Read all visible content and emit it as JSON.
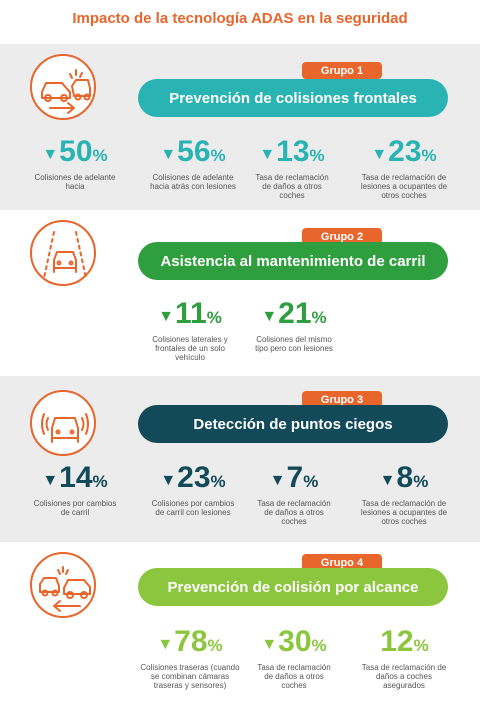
{
  "title": "Impacto de la tecnología ADAS en la seguridad",
  "groups": [
    {
      "badge": "Grupo 1",
      "heading": "Prevención de colisiones frontales",
      "color": "#2ab3b3",
      "icon": "frontal-collision-icon",
      "stats": [
        {
          "arrow": "▼",
          "value": "50",
          "unit": "%",
          "desc": "Colisiones de adelante hacia"
        },
        {
          "arrow": "▼",
          "value": "56",
          "unit": "%",
          "desc": "Colisiones de adelante hacia atrás con lesiones"
        },
        {
          "arrow": "▼",
          "value": "13",
          "unit": "%",
          "desc": "Tasa de reclamación de daños a otros coches"
        },
        {
          "arrow": "▼",
          "value": "23",
          "unit": "%",
          "desc": "Tasa de reclamación de lesiones a ocupantes de otros coches"
        }
      ]
    },
    {
      "badge": "Grupo 2",
      "heading": "Asistencia al mantenimiento de carril",
      "color": "#2f9e3f",
      "icon": "lane-keeping-icon",
      "stats": [
        {
          "arrow": "▼",
          "value": "11",
          "unit": "%",
          "desc": "Colisiones laterales y frontales de un solo vehículo"
        },
        {
          "arrow": "▼",
          "value": "21",
          "unit": "%",
          "desc": "Colisiones del mismo tipo pero con lesiones"
        }
      ]
    },
    {
      "badge": "Grupo 3",
      "heading": "Detección de puntos ciegos",
      "color": "#124a5a",
      "icon": "blind-spot-icon",
      "stats": [
        {
          "arrow": "▼",
          "value": "14",
          "unit": "%",
          "desc": "Colisiones por cambios de carril"
        },
        {
          "arrow": "▼",
          "value": "23",
          "unit": "%",
          "desc": "Colisiones por cambios de carril con lesiones"
        },
        {
          "arrow": "▼",
          "value": "7",
          "unit": "%",
          "desc": "Tasa de reclamación de daños a otros coches"
        },
        {
          "arrow": "▼",
          "value": "8",
          "unit": "%",
          "desc": "Tasa de reclamación de lesiones a ocupantes de otros coches"
        }
      ]
    },
    {
      "badge": "Grupo 4",
      "heading": "Prevención de colisión por alcance",
      "color": "#8cc63e",
      "icon": "rear-collision-icon",
      "stats": [
        {
          "arrow": "▼",
          "value": "78",
          "unit": "%",
          "desc": "Colisiones traseras (cuando se combinan cámaras traseras y sensores)"
        },
        {
          "arrow": "▼",
          "value": "30",
          "unit": "%",
          "desc": "Tasa de reclamación de daños a otros coches"
        },
        {
          "arrow": "",
          "value": "12",
          "unit": "%",
          "desc": "Tasa de reclamación de daños a coches asegurados"
        }
      ]
    }
  ]
}
